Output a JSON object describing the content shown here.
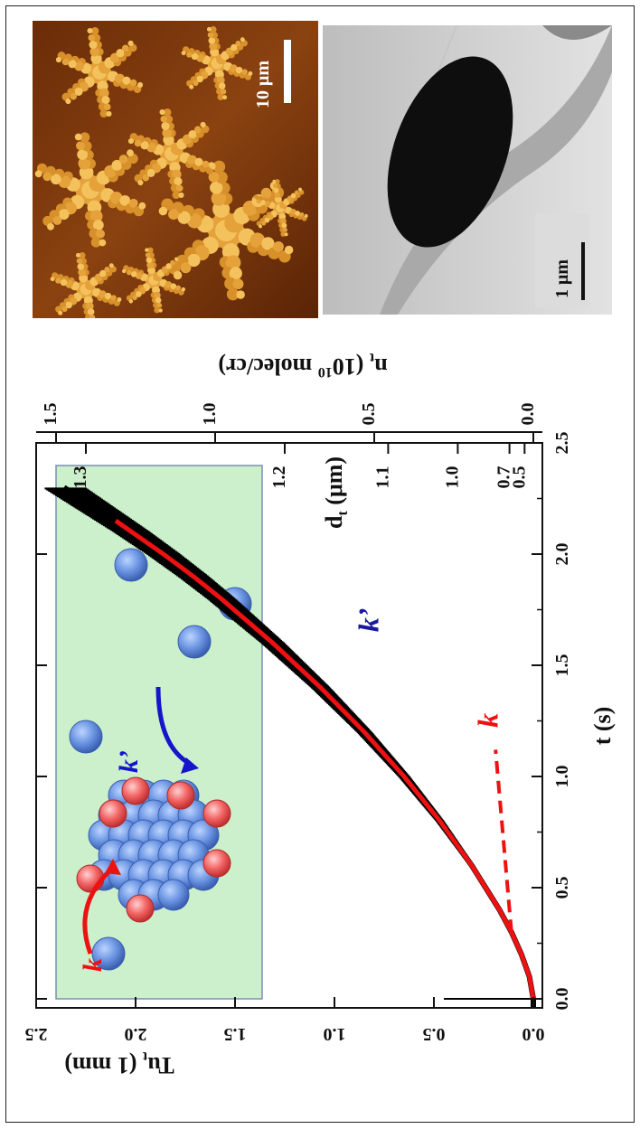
{
  "chart_data": {
    "type": "line",
    "orientation": "rotated-90-ccw",
    "xlabel": "t (s)",
    "ylabel": "Tu",
    "ylabel_sub": "t",
    "ylabel_unit": "(1 mm)",
    "xlim": [
      -0.3,
      2.5
    ],
    "ylim": [
      -0.05,
      2.5
    ],
    "x_ticks": [
      "0.0",
      "0.5",
      "1.0",
      "1.5",
      "2.0",
      "2.5"
    ],
    "y_ticks": [
      "0.0",
      "0.5",
      "1.0",
      "1.5",
      "2.0",
      "2.5"
    ],
    "top_axis": {
      "label": "d",
      "label_sub": "t",
      "label_unit": "(μm)",
      "ticks": [
        {
          "text": "0.5",
          "y": 0.044
        },
        {
          "text": "0.7",
          "y": 0.12
        },
        {
          "text": "1.0",
          "y": 0.38
        },
        {
          "text": "1.1",
          "y": 0.73
        },
        {
          "text": "1.2",
          "y": 1.25
        },
        {
          "text": "1.3",
          "y": 2.25
        }
      ]
    },
    "right_axis": {
      "label": "n",
      "label_sub": "t",
      "label_exp_base": "10",
      "label_exp": "10",
      "label_unit": "molec/cr",
      "ticks": [
        {
          "text": "0.0",
          "y": 0.0
        },
        {
          "text": "0.5",
          "y": 0.8
        },
        {
          "text": "1.0",
          "y": 1.6
        },
        {
          "text": "1.5",
          "y": 2.4
        }
      ]
    },
    "series": [
      {
        "kind": "data",
        "color": "#000000",
        "x": [
          -0.3,
          0.0,
          0.1,
          0.2,
          0.3,
          0.4,
          0.5,
          0.6,
          0.7,
          0.8,
          0.9,
          1.0,
          1.1,
          1.2,
          1.3,
          1.4,
          1.5,
          1.6,
          1.7,
          1.8,
          1.9,
          2.0,
          2.1,
          2.2,
          2.3
        ],
        "y": [
          0.0,
          0.0,
          0.02,
          0.06,
          0.11,
          0.17,
          0.24,
          0.31,
          0.39,
          0.47,
          0.56,
          0.65,
          0.75,
          0.85,
          0.96,
          1.07,
          1.19,
          1.31,
          1.44,
          1.57,
          1.71,
          1.86,
          2.02,
          2.19,
          2.36
        ]
      },
      {
        "kind": "fit",
        "color": "#ee1111",
        "x": [
          0.0,
          0.1,
          0.2,
          0.3,
          0.4,
          0.5,
          0.6,
          0.7,
          0.8,
          0.9,
          1.0,
          1.1,
          1.2,
          1.3,
          1.4,
          1.5,
          1.6,
          1.7,
          1.8,
          1.9,
          2.0,
          2.1,
          2.15
        ],
        "y": [
          0.0,
          0.02,
          0.06,
          0.11,
          0.17,
          0.24,
          0.31,
          0.39,
          0.47,
          0.56,
          0.65,
          0.75,
          0.85,
          0.96,
          1.07,
          1.19,
          1.31,
          1.44,
          1.57,
          1.71,
          1.86,
          2.02,
          2.1
        ]
      },
      {
        "kind": "linear",
        "style": "dashed",
        "color": "#ee1111",
        "x": [
          0.3,
          1.12
        ],
        "y": [
          0.11,
          0.19
        ]
      }
    ],
    "spike": {
      "x": 0.0,
      "y": 0.45
    },
    "annotations": [
      {
        "text": "k’",
        "x": 1.65,
        "y": 0.78,
        "color": "#1a1aa0"
      },
      {
        "text": "k",
        "x": 1.22,
        "y": 0.18,
        "color": "#ee1111"
      }
    ]
  },
  "inset": {
    "k_label": "k",
    "kprime_label": "k’",
    "k_color": "#ee1111",
    "kprime_color": "#1515cc",
    "bg_color": "#ccf0cc",
    "ball_color": "#6a96e0",
    "edge_ball_color": "#f06060"
  },
  "afm_image": {
    "scale_label": "10 μm"
  },
  "tem_image": {
    "scale_label": "1 μm"
  }
}
